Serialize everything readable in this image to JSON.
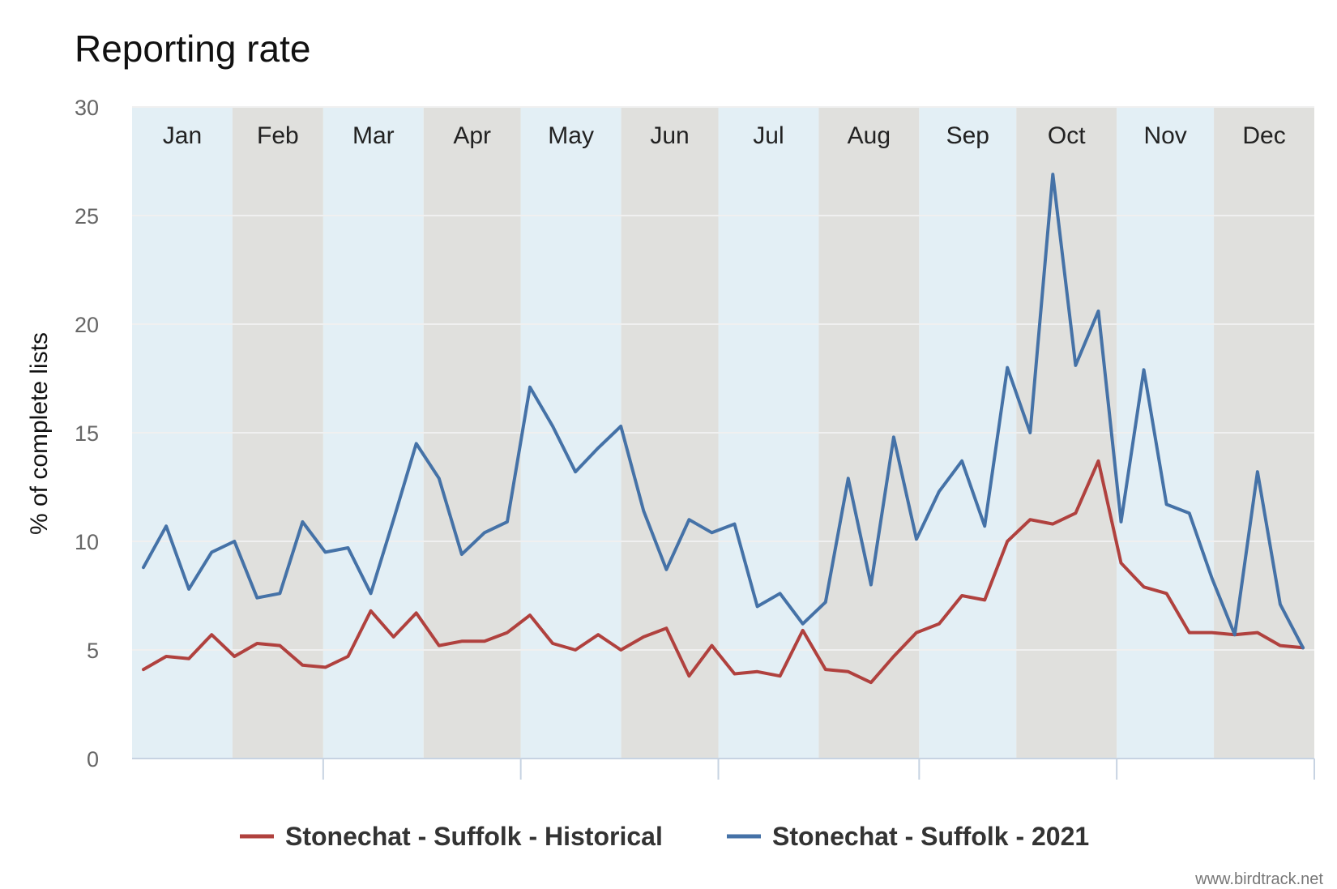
{
  "chart_data": {
    "type": "line",
    "title": "Reporting rate",
    "xlabel": "",
    "ylabel": "% of complete lists",
    "ylim": [
      0,
      30
    ],
    "yticks": [
      "0",
      "5",
      "10",
      "15",
      "20",
      "25",
      "30"
    ],
    "months": [
      "Jan",
      "Feb",
      "Mar",
      "Apr",
      "May",
      "Jun",
      "Jul",
      "Aug",
      "Sep",
      "Oct",
      "Nov",
      "Dec"
    ],
    "weeks_per_year": 52,
    "series": [
      {
        "name": "Stonechat - Suffolk - Historical",
        "color": "#b0413e",
        "values": [
          4.1,
          4.7,
          4.6,
          5.7,
          4.7,
          5.3,
          5.2,
          4.3,
          4.2,
          4.7,
          6.8,
          5.6,
          6.7,
          5.2,
          5.4,
          5.4,
          5.8,
          6.6,
          5.3,
          5.0,
          5.7,
          5.0,
          5.6,
          6.0,
          3.8,
          5.2,
          3.9,
          4.0,
          3.8,
          5.9,
          4.1,
          4.0,
          3.5,
          4.7,
          5.8,
          6.2,
          7.5,
          7.3,
          10.0,
          11.0,
          10.8,
          11.3,
          13.7,
          9.0,
          7.9,
          7.6,
          5.8,
          5.8,
          5.7,
          5.8,
          5.2,
          5.1
        ]
      },
      {
        "name": "Stonechat - Suffolk - 2021",
        "color": "#4572a7",
        "values": [
          8.8,
          10.7,
          7.8,
          9.5,
          10.0,
          7.4,
          7.6,
          10.9,
          9.5,
          9.7,
          7.6,
          11.0,
          14.5,
          12.9,
          9.4,
          10.4,
          10.9,
          17.1,
          15.3,
          13.2,
          14.3,
          15.3,
          11.4,
          8.7,
          11.0,
          10.4,
          10.8,
          7.0,
          7.6,
          6.2,
          7.2,
          12.9,
          8.0,
          14.8,
          10.1,
          12.3,
          13.7,
          10.7,
          18.0,
          15.0,
          26.9,
          18.1,
          20.6,
          10.9,
          17.9,
          11.7,
          11.3,
          8.3,
          5.7,
          13.2,
          7.1,
          5.1
        ]
      }
    ],
    "legend_position": "bottom-center",
    "grid": true
  },
  "credit": "www.birdtrack.net"
}
